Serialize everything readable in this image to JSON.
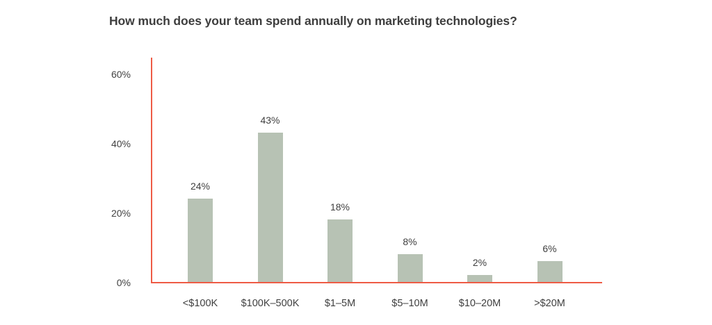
{
  "title": "How much does your team spend annually on marketing technologies?",
  "chart_data": {
    "type": "bar",
    "title": "How much does your team spend annually on marketing technologies?",
    "categories": [
      "<$100K",
      "$100K–500K",
      "$1–5M",
      "$5–10M",
      "$10–20M",
      ">$20M"
    ],
    "values": [
      24,
      43,
      18,
      8,
      2,
      6
    ],
    "data_labels": [
      "24%",
      "43%",
      "18%",
      "8%",
      "2%",
      "6%"
    ],
    "xlabel": "",
    "ylabel": "",
    "ylim": [
      0,
      65
    ],
    "yticks": {
      "values": [
        0,
        20,
        40,
        60
      ],
      "labels": [
        "0%",
        "20%",
        "40%",
        "60%"
      ]
    },
    "grid": false,
    "legend": false,
    "colors": {
      "bar": "#b7c2b4",
      "axis": "#ee5b45",
      "label_text": "#3f3f3f",
      "tick_text": "#414141",
      "title_text": "#3e3e3e",
      "background": "#ffffff"
    }
  }
}
